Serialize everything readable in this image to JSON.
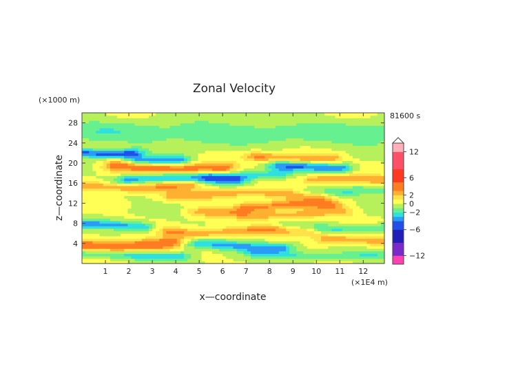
{
  "chart_data": {
    "type": "heatmap",
    "title": "Zonal Velocity",
    "xlabel": "x—coordinate",
    "ylabel": "z—coordinate",
    "x_unit": "(×1E4 m)",
    "y_unit": "(×1000 m)",
    "time_label": "81600 s",
    "xlim": [
      0,
      12.9
    ],
    "ylim": [
      0,
      30
    ],
    "x_ticks": [
      1,
      2,
      3,
      4,
      5,
      6,
      7,
      8,
      9,
      10,
      11,
      12
    ],
    "y_ticks": [
      4,
      8,
      12,
      16,
      20,
      24,
      28
    ],
    "colorbar": {
      "levels": [
        -14,
        -13,
        -12,
        -11,
        -10,
        -9,
        -8,
        -7,
        -6,
        -5,
        -4,
        -3,
        -2,
        -1,
        0,
        1,
        2,
        3,
        4,
        5,
        6,
        7,
        8,
        9,
        10,
        11,
        12,
        13,
        14
      ],
      "tick_labels": [
        "12",
        "6",
        "2",
        "0",
        "−2",
        "−6",
        "−12"
      ],
      "tick_values": [
        12,
        6,
        2,
        0,
        -2,
        -6,
        -12
      ]
    },
    "bands": [
      {
        "z": 1.8,
        "amp": -2.6,
        "width": 0.9,
        "x0": 0.0,
        "x1": 4.2
      },
      {
        "z": 1.8,
        "amp": -2.0,
        "width": 0.9,
        "x0": 7.5,
        "x1": 12.9
      },
      {
        "z": 3.8,
        "amp": 4.5,
        "width": 1.2,
        "x0": 0.0,
        "x1": 4.0
      },
      {
        "z": 3.6,
        "amp": -3.2,
        "width": 1.0,
        "x0": 4.5,
        "x1": 8.5
      },
      {
        "z": 4.6,
        "amp": 2.8,
        "width": 1.0,
        "x0": 10.5,
        "x1": 12.9
      },
      {
        "z": 6.5,
        "amp": 3.0,
        "width": 1.0,
        "x0": 3.8,
        "x1": 9.5
      },
      {
        "z": 7.5,
        "amp": -3.5,
        "width": 0.9,
        "x0": 0.0,
        "x1": 2.5
      },
      {
        "z": 7.2,
        "amp": -2.2,
        "width": 0.9,
        "x0": 9.0,
        "x1": 12.9
      },
      {
        "z": 10.0,
        "amp": 2.4,
        "width": 1.0,
        "x0": 5.0,
        "x1": 11.0
      },
      {
        "z": 11.6,
        "amp": 3.2,
        "width": 1.0,
        "x0": 7.0,
        "x1": 10.5
      },
      {
        "z": 13.8,
        "amp": 2.6,
        "width": 1.0,
        "x0": 4.0,
        "x1": 10.0
      },
      {
        "z": 14.5,
        "amp": -1.8,
        "width": 0.9,
        "x0": 9.8,
        "x1": 12.9
      },
      {
        "z": 15.5,
        "amp": 3.0,
        "width": 1.0,
        "x0": 0.0,
        "x1": 4.5
      },
      {
        "z": 16.8,
        "amp": -3.4,
        "width": 1.0,
        "x0": 2.0,
        "x1": 6.5
      },
      {
        "z": 16.6,
        "amp": 2.8,
        "width": 1.0,
        "x0": 10.0,
        "x1": 12.9
      },
      {
        "z": 17.8,
        "amp": -2.6,
        "width": 0.9,
        "x0": 5.5,
        "x1": 8.5
      },
      {
        "z": 19.2,
        "amp": 3.8,
        "width": 1.2,
        "x0": 1.5,
        "x1": 6.0
      },
      {
        "z": 19.3,
        "amp": -4.0,
        "width": 1.0,
        "x0": 8.5,
        "x1": 11.0
      },
      {
        "z": 20.8,
        "amp": -4.2,
        "width": 0.9,
        "x0": 2.5,
        "x1": 4.0
      },
      {
        "z": 21.2,
        "amp": 3.2,
        "width": 1.0,
        "x0": 7.5,
        "x1": 10.5
      },
      {
        "z": 22.2,
        "amp": -4.5,
        "width": 0.9,
        "x0": 0.0,
        "x1": 2.0
      },
      {
        "z": 26.0,
        "amp": -1.6,
        "width": 2.5,
        "x0": 0.0,
        "x1": 12.9
      }
    ]
  }
}
